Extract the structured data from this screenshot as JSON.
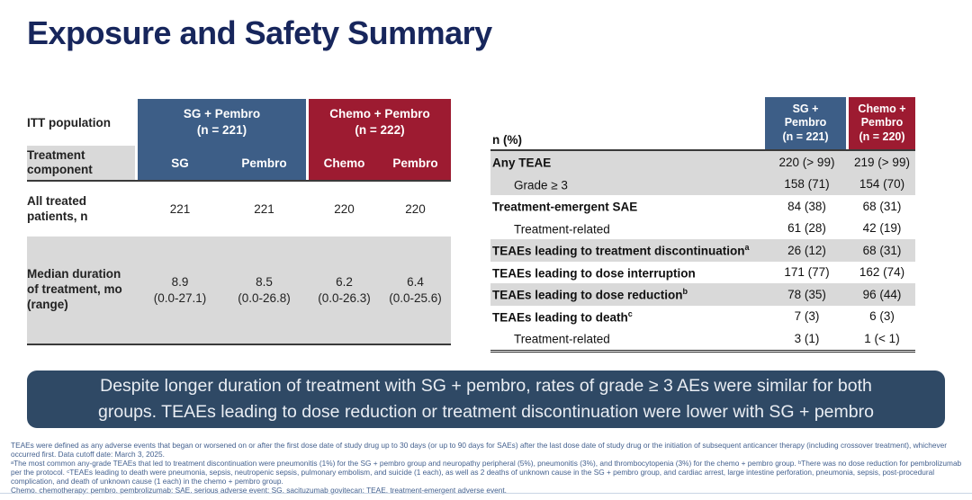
{
  "slide": {
    "title": "Exposure and Safety Summary"
  },
  "colors": {
    "title_navy": "#17265C",
    "group_blue": "#3D5E87",
    "group_red": "#9D1B31",
    "row_gray": "#D9D9D9",
    "banner_navy": "#2F4965"
  },
  "left_table": {
    "corner_label": "ITT population",
    "component_label": "Treatment component",
    "groups": [
      {
        "name": "SG + Pembro",
        "n": "(n = 221)",
        "col1": "SG",
        "col2": "Pembro"
      },
      {
        "name": "Chemo + Pembro",
        "n": "(n = 222)",
        "col1": "Chemo",
        "col2": "Pembro"
      }
    ],
    "rows": [
      {
        "label": "All treated patients, n",
        "values": [
          "221",
          "221",
          "220",
          "220"
        ]
      },
      {
        "label": "Median duration of treatment, mo (range)",
        "medians": [
          "8.9",
          "8.5",
          "6.2",
          "6.4"
        ],
        "ranges": [
          "(0.0-27.1)",
          "(0.0-26.8)",
          "(0.0-26.3)",
          "(0.0-25.6)"
        ]
      }
    ]
  },
  "right_table": {
    "corner_label": "n (%)",
    "columns": [
      {
        "line1": "SG +",
        "line2": "Pembro",
        "n": "(n = 221)"
      },
      {
        "line1": "Chemo +",
        "line2": "Pembro",
        "n": "(n = 220)"
      }
    ],
    "rows": [
      {
        "label": "Any TEAE",
        "values": [
          "220 (> 99)",
          "219 (> 99)"
        ]
      },
      {
        "label": "Grade ≥ 3",
        "values": [
          "158 (71)",
          "154 (70)"
        ]
      },
      {
        "label": "Treatment-emergent SAE",
        "values": [
          "84 (38)",
          "68 (31)"
        ]
      },
      {
        "label": "Treatment-related",
        "values": [
          "61 (28)",
          "42 (19)"
        ]
      },
      {
        "label": "TEAEs leading to treatment discontinuation",
        "sup": "a",
        "values": [
          "26 (12)",
          "68 (31)"
        ]
      },
      {
        "label": "TEAEs leading to dose interruption",
        "values": [
          "171 (77)",
          "162 (74)"
        ]
      },
      {
        "label": "TEAEs leading to dose reduction",
        "sup": "b",
        "values": [
          "78 (35)",
          "96 (44)"
        ]
      },
      {
        "label": "TEAEs leading to death",
        "sup": "c",
        "values": [
          "7 (3)",
          "6 (3)"
        ]
      },
      {
        "label": "Treatment-related",
        "values": [
          "3 (1)",
          "1 (< 1)"
        ]
      }
    ]
  },
  "banner": {
    "text": "Despite longer duration of treatment with SG + pembro, rates of grade ≥ 3 AEs were similar for both groups. TEAEs leading to dose reduction or treatment discontinuation were lower with SG + pembro"
  },
  "footnotes": [
    "TEAEs were defined as any adverse events that began or worsened on or after the first dose date of study drug up to 30 days (or up to 90 days for SAEs) after the last dose date of study drug or the initiation of subsequent anticancer therapy (including crossover treatment), whichever occurred first. Data cutoff date: March 3, 2025.",
    "ᵃThe most common any-grade TEAEs that led to treatment discontinuation were pneumonitis (1%) for the SG + pembro group and neuropathy peripheral (5%), pneumonitis (3%), and thrombocytopenia (3%) for the chemo + pembro group. ᵇThere was no dose reduction for pembrolizumab per the protocol. ᶜTEAEs leading to death were pneumonia, sepsis, neutropenic sepsis, pulmonary embolism, and suicide (1 each), as well as 2 deaths of unknown cause in the SG + pembro group, and cardiac arrest, large intestine perforation, pneumonia, sepsis, post-procedural complication, and death of unknown cause (1 each) in the chemo + pembro group.",
    "Chemo, chemotherapy; pembro, pembrolizumab; SAE, serious adverse event; SG, sacituzumab govitecan; TEAE, treatment-emergent adverse event."
  ]
}
